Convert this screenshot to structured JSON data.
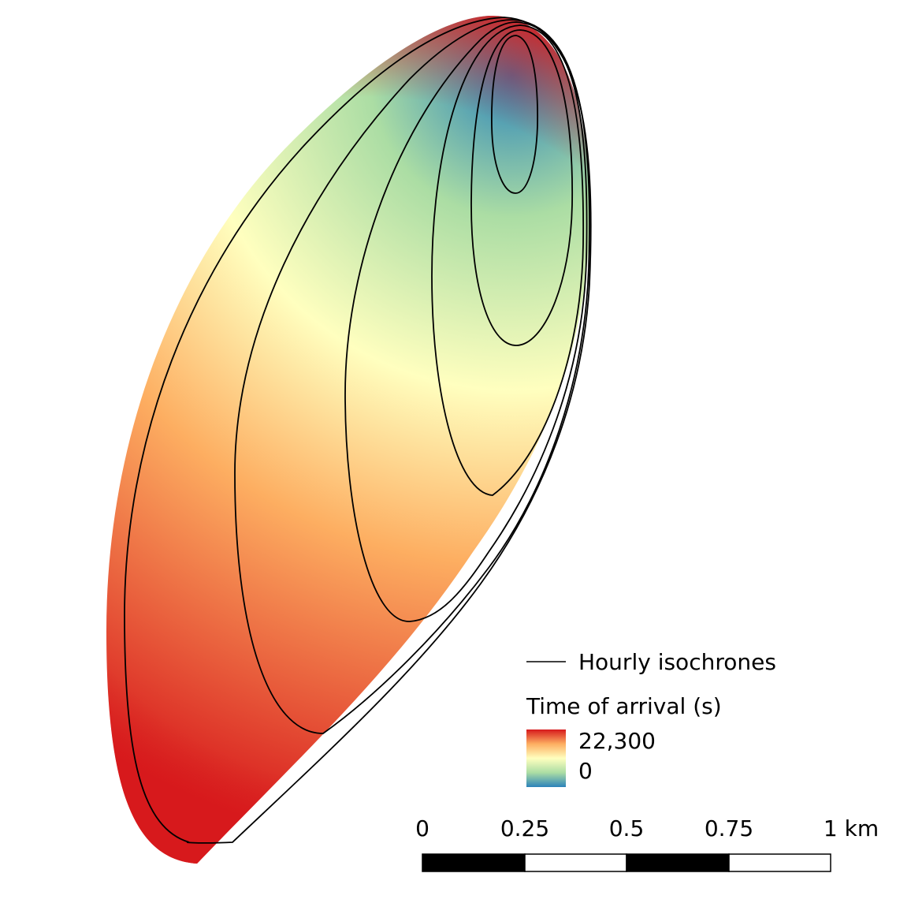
{
  "legend": {
    "line_label": "Hourly isochrones",
    "ramp_title": "Time of arrival (s)",
    "ramp_max_label": "22,300",
    "ramp_min_label": "0",
    "ramp_colors": [
      "#d7191c",
      "#fdae61",
      "#ffffbf",
      "#abdda4",
      "#2b83ba"
    ]
  },
  "scale_bar": {
    "labels": [
      "0",
      "0.25",
      "0.5",
      "0.75",
      "1 km"
    ]
  },
  "map": {
    "fill_colors": {
      "early": "#2b83ba",
      "mid_early": "#abdda4",
      "middle": "#ffffbf",
      "mid_late": "#fdae61",
      "late": "#d7191c"
    },
    "isochrone_color": "#000000"
  }
}
